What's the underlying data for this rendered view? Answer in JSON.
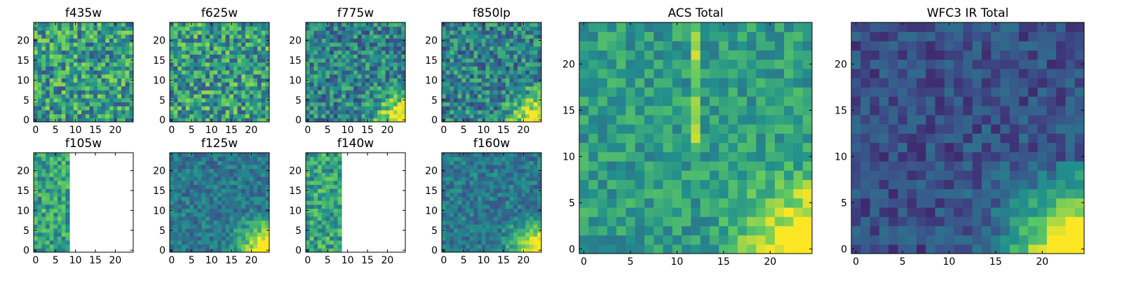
{
  "chart_data": [
    {
      "type": "heatmap",
      "title": "f435w",
      "seed": 11,
      "style": "noisy",
      "xlim": [
        0,
        24
      ],
      "ylim": [
        0,
        24
      ],
      "xticks": [
        0,
        5,
        10,
        15,
        20
      ],
      "yticks": [
        0,
        5,
        10,
        15,
        20
      ],
      "xlabel": "",
      "ylabel": ""
    },
    {
      "type": "heatmap",
      "title": "f625w",
      "seed": 23,
      "style": "noisy",
      "xlim": [
        0,
        24
      ],
      "ylim": [
        0,
        24
      ],
      "xticks": [
        0,
        5,
        10,
        15,
        20
      ],
      "yticks": [
        0,
        5,
        10,
        15,
        20
      ],
      "xlabel": "",
      "ylabel": ""
    },
    {
      "type": "heatmap",
      "title": "f775w",
      "seed": 37,
      "style": "noisy-corner",
      "xlim": [
        0,
        24
      ],
      "ylim": [
        0,
        24
      ],
      "xticks": [
        0,
        5,
        10,
        15,
        20
      ],
      "yticks": [
        0,
        5,
        10,
        15,
        20
      ],
      "xlabel": "",
      "ylabel": ""
    },
    {
      "type": "heatmap",
      "title": "f850lp",
      "seed": 41,
      "style": "noisy-corner",
      "xlim": [
        0,
        24
      ],
      "ylim": [
        0,
        24
      ],
      "xticks": [
        0,
        5,
        10,
        15,
        20
      ],
      "yticks": [
        0,
        5,
        10,
        15,
        20
      ],
      "xlabel": "",
      "ylabel": ""
    },
    {
      "type": "heatmap",
      "title": "f105w",
      "seed": 53,
      "style": "partial",
      "data_max_col": 8,
      "xlim": [
        0,
        24
      ],
      "ylim": [
        0,
        24
      ],
      "xticks": [
        0,
        5,
        10,
        15,
        20
      ],
      "yticks": [
        0,
        5,
        10,
        15,
        20
      ],
      "xlabel": "",
      "ylabel": ""
    },
    {
      "type": "heatmap",
      "title": "f125w",
      "seed": 61,
      "style": "smooth-corner",
      "xlim": [
        0,
        24
      ],
      "ylim": [
        0,
        24
      ],
      "xticks": [
        0,
        5,
        10,
        15,
        20
      ],
      "yticks": [
        0,
        5,
        10,
        15,
        20
      ],
      "xlabel": "",
      "ylabel": ""
    },
    {
      "type": "heatmap",
      "title": "f140w",
      "seed": 71,
      "style": "partial",
      "data_max_col": 8,
      "xlim": [
        0,
        24
      ],
      "ylim": [
        0,
        24
      ],
      "xticks": [
        0,
        5,
        10,
        15,
        20
      ],
      "yticks": [
        0,
        5,
        10,
        15,
        20
      ],
      "xlabel": "",
      "ylabel": ""
    },
    {
      "type": "heatmap",
      "title": "f160w",
      "seed": 83,
      "style": "smooth-corner",
      "xlim": [
        0,
        24
      ],
      "ylim": [
        0,
        24
      ],
      "xticks": [
        0,
        5,
        10,
        15,
        20
      ],
      "yticks": [
        0,
        5,
        10,
        15,
        20
      ],
      "xlabel": "",
      "ylabel": ""
    },
    {
      "type": "heatmap",
      "title": "ACS Total",
      "seed": 97,
      "style": "acs",
      "xlim": [
        0,
        24
      ],
      "ylim": [
        0,
        24
      ],
      "xticks": [
        0,
        5,
        10,
        15,
        20
      ],
      "yticks": [
        0,
        5,
        10,
        15,
        20
      ],
      "xlabel": "",
      "ylabel": ""
    },
    {
      "type": "heatmap",
      "title": "WFC3 IR Total",
      "seed": 103,
      "style": "ir",
      "xlim": [
        0,
        24
      ],
      "ylim": [
        0,
        24
      ],
      "xticks": [
        0,
        5,
        10,
        15,
        20
      ],
      "yticks": [
        0,
        5,
        10,
        15,
        20
      ],
      "xlabel": "",
      "ylabel": ""
    }
  ],
  "colormap": [
    "#440154",
    "#3b528b",
    "#21908d",
    "#5dc963",
    "#fde725"
  ]
}
